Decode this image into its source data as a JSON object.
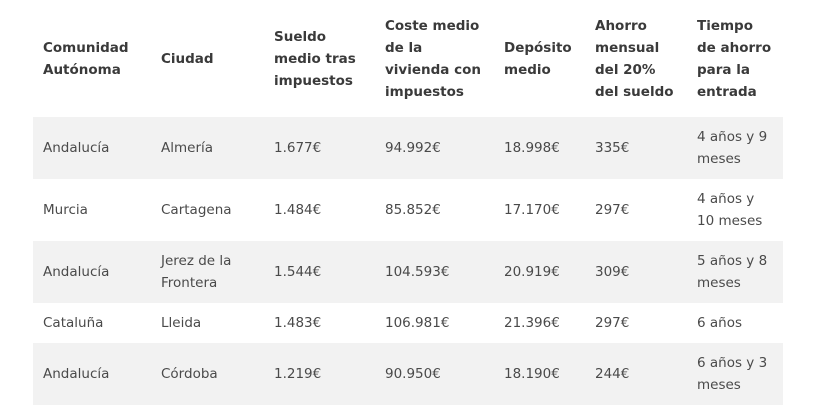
{
  "table": {
    "headers": [
      "Comunidad Autónoma",
      "Ciudad",
      "Sueldo medio tras impuestos",
      "Coste medio de la vivienda con impuestos",
      "Depósito medio",
      "Ahorro mensual del 20% del sueldo",
      "Tiempo de ahorro para la entrada"
    ],
    "rows": [
      [
        "Andalucía",
        "Almería",
        "1.677€",
        "94.992€",
        "18.998€",
        "335€",
        "4 años y 9 meses"
      ],
      [
        "Murcia",
        "Cartagena",
        "1.484€",
        "85.852€",
        "17.170€",
        "297€",
        "4 años y 10 meses"
      ],
      [
        "Andalucía",
        "Jerez de la Frontera",
        "1.544€",
        "104.593€",
        "20.919€",
        "309€",
        "5 años y 8 meses"
      ],
      [
        "Cataluña",
        "Lleida",
        "1.483€",
        "106.981€",
        "21.396€",
        "297€",
        "6 años"
      ],
      [
        "Andalucía",
        "Córdoba",
        "1.219€",
        "90.950€",
        "18.190€",
        "244€",
        "6 años y 3 meses"
      ]
    ]
  },
  "colors": {
    "row_shade": "#f2f2f2",
    "text": "#444444",
    "background": "#ffffff"
  }
}
